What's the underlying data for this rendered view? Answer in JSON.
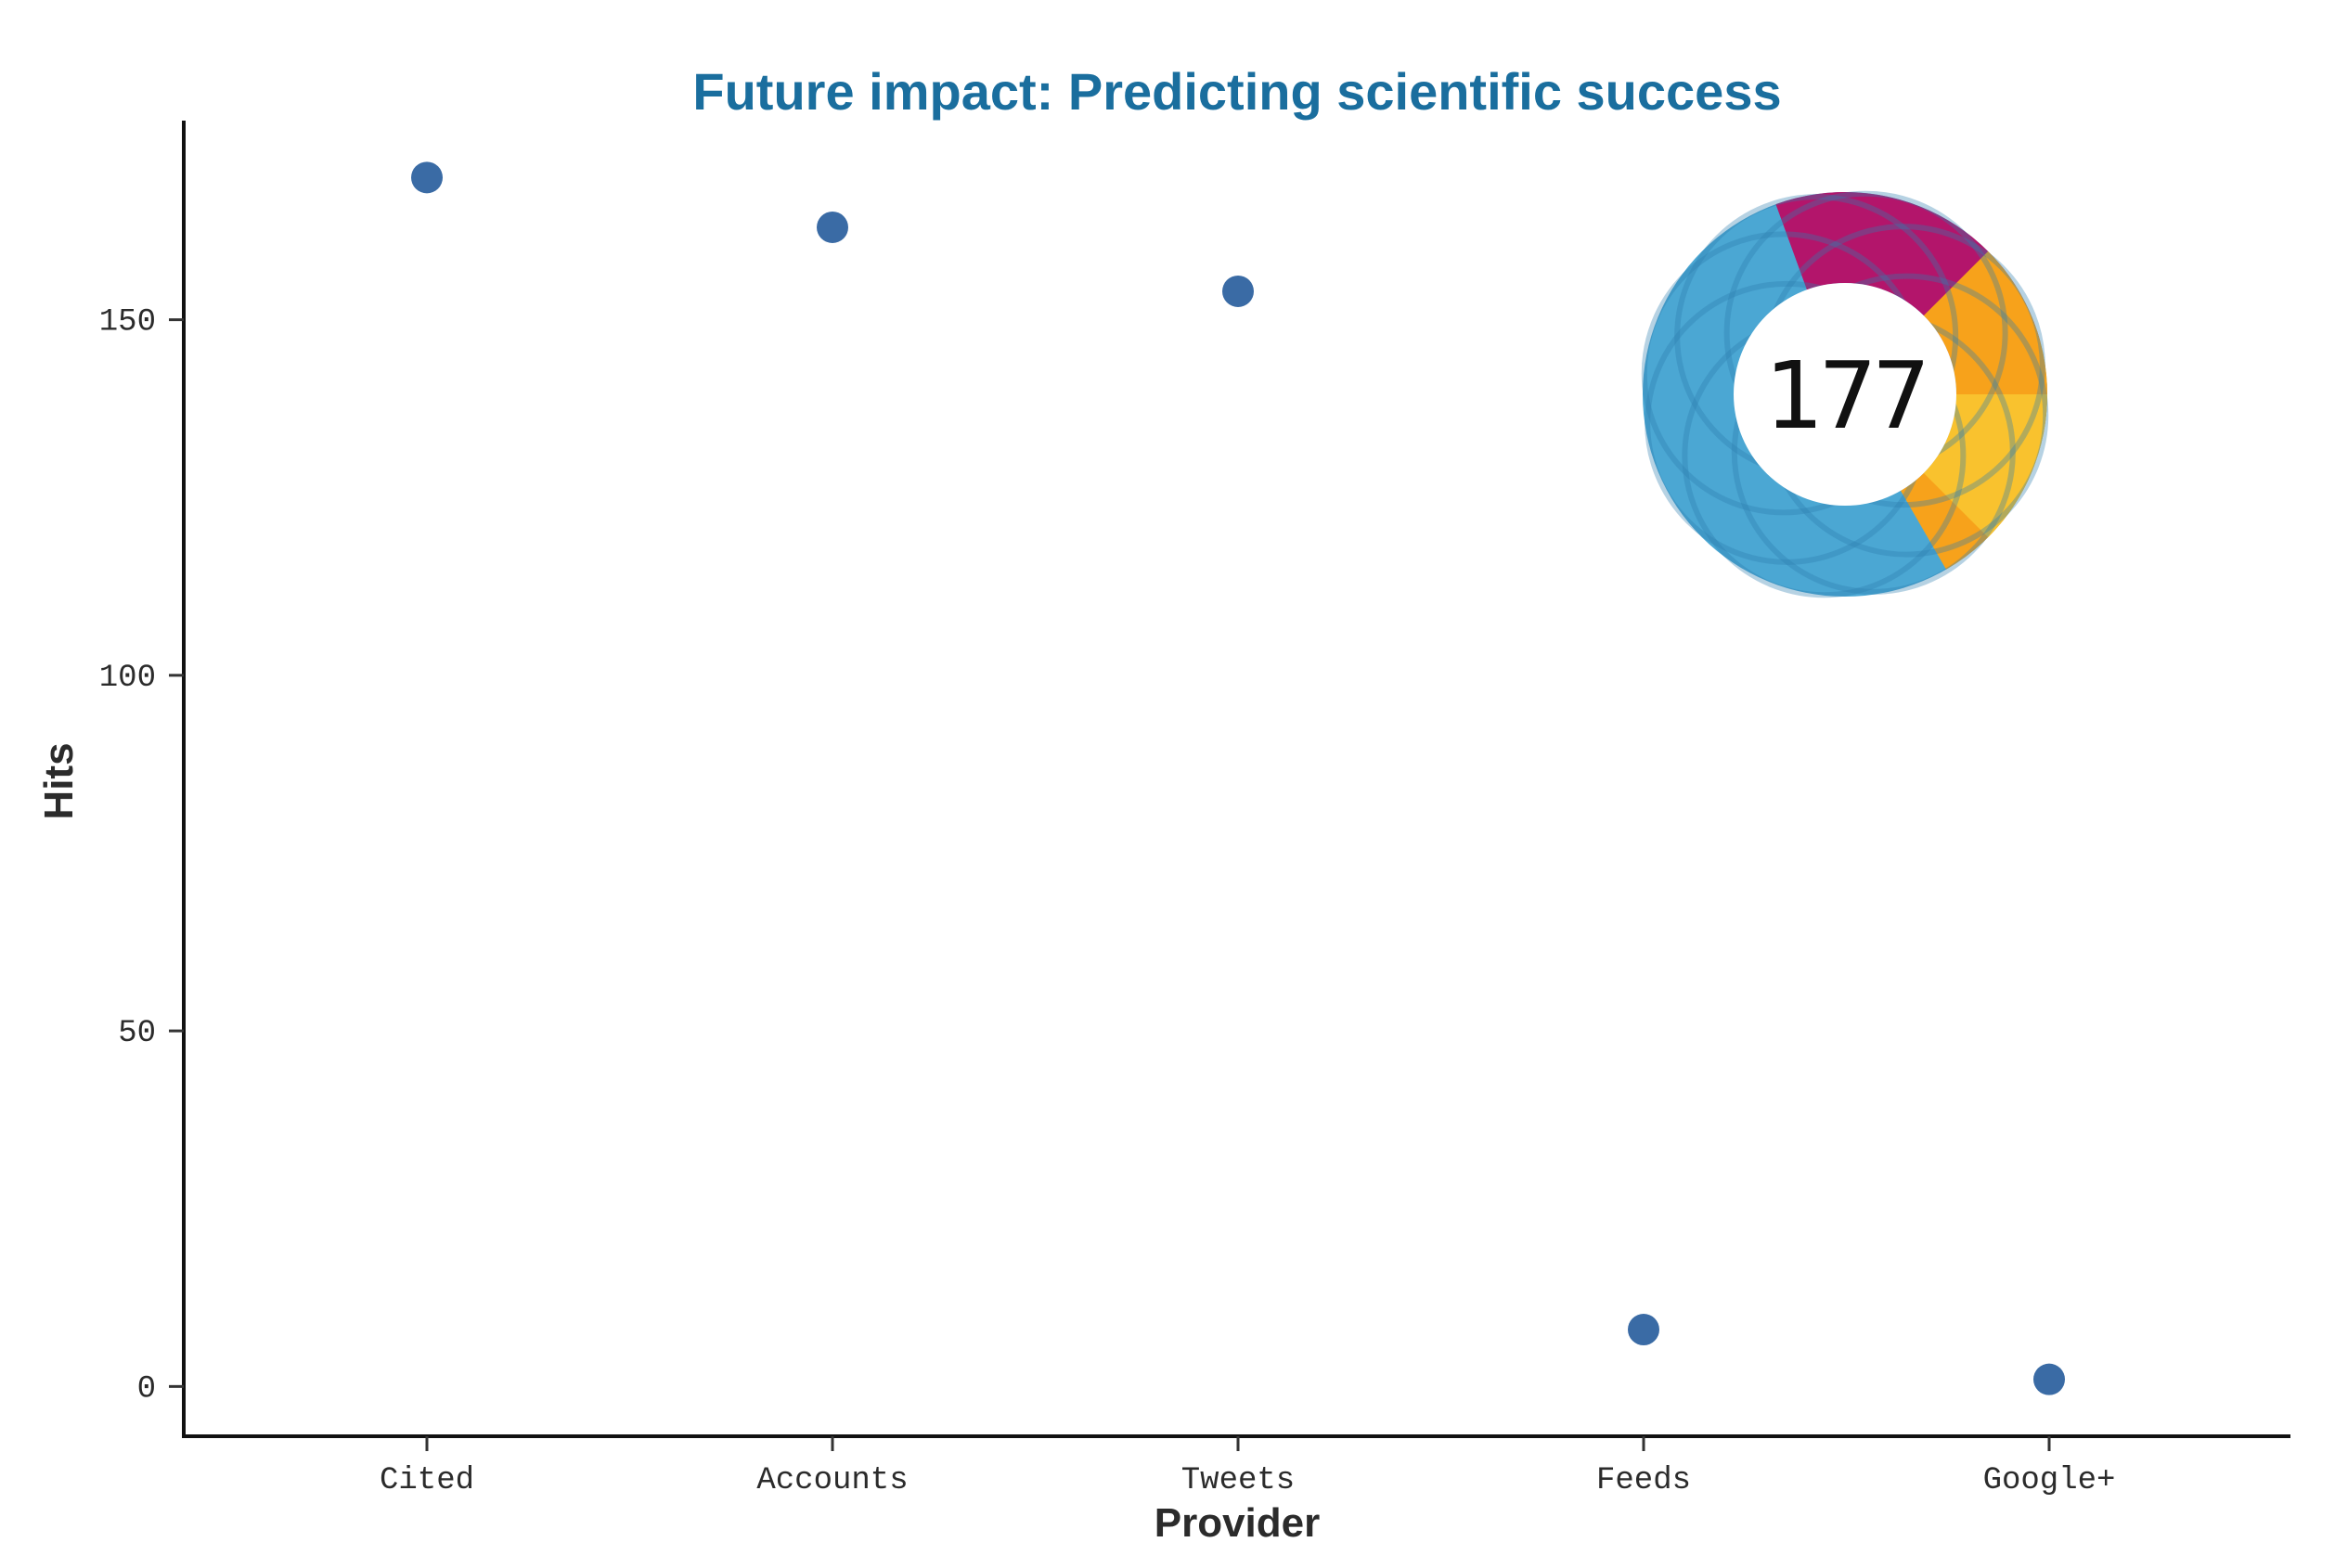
{
  "chart_data": {
    "type": "scatter",
    "title": "Future impact: Predicting scientific success",
    "xlabel": "Provider",
    "ylabel": "Hits",
    "categories": [
      "Cited",
      "Accounts",
      "Tweets",
      "Feeds",
      "Google+"
    ],
    "values": [
      170,
      163,
      154,
      8,
      1
    ],
    "ylim": [
      -7,
      178
    ],
    "yticks": [
      0,
      50,
      100,
      150
    ],
    "grid": false,
    "point_color": "#3a6ba5",
    "title_color": "#1a6e9e"
  },
  "badge": {
    "score": "177",
    "colors": {
      "blue": "#4ba7d3",
      "dark_blue": "#2f7fae",
      "magenta": "#b3156b",
      "orange": "#f7a21b",
      "yellow": "#f9c22e"
    }
  }
}
